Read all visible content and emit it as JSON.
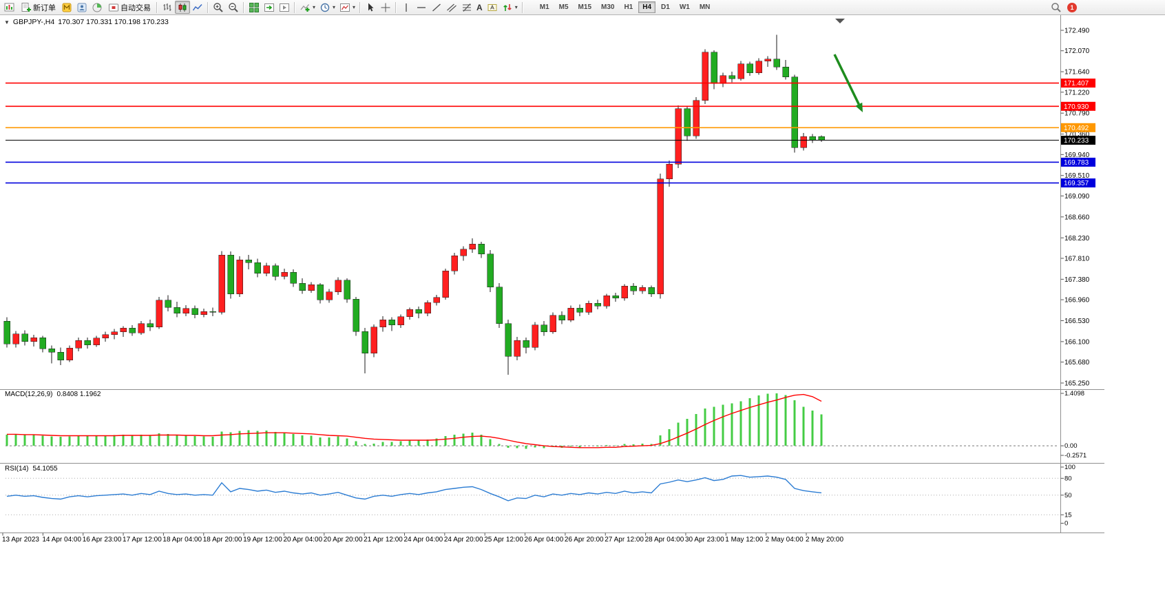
{
  "app": {
    "toolbar": {
      "new_order_label": "新订单",
      "autotrade_label": "自动交易",
      "timeframes": [
        "M1",
        "M5",
        "M15",
        "M30",
        "H1",
        "H4",
        "D1",
        "W1",
        "MN"
      ],
      "active_timeframe": "H4",
      "notification_count": "1",
      "glyphs": {
        "dropdown": "▾",
        "text_tool": "A"
      },
      "icon_names": [
        "new-chart-icon",
        "new-order-icon",
        "metaeditor-icon",
        "profiles-icon",
        "market-icon",
        "autotrading-icon",
        "bar-chart-icon",
        "candlestick-icon",
        "line-chart-icon",
        "zoom-in-icon",
        "zoom-out-icon",
        "tile-windows-icon",
        "auto-scroll-icon",
        "chart-shift-icon",
        "indicators-icon",
        "periods-icon",
        "templates-icon",
        "cursor-icon",
        "crosshair-icon",
        "vertical-line-icon",
        "horizontal-line-icon",
        "trendline-icon",
        "channel-icon",
        "fibonacci-icon",
        "text-icon",
        "text-label-icon",
        "arrows-icon",
        "search-icon",
        "notification-badge"
      ]
    }
  },
  "chart": {
    "title": {
      "collapse_glyph": "▼",
      "symbol_period": "GBPJPY-,H4",
      "ohlc": "170.307 170.331 170.198 170.233"
    }
  },
  "colors": {
    "bull": "#ff2020",
    "bear": "#22ab22",
    "macd_hist": "#44cc44",
    "macd_signal": "#ff0000",
    "rsi": "#2b7cd3",
    "level_red": "#ff0000",
    "level_orange": "#ff9800",
    "level_blue": "#0000dd",
    "current_price": "#000000"
  },
  "chart_data": {
    "type": "candlestick",
    "symbol": "GBPJPY-",
    "period": "H4",
    "price_range": {
      "max": 172.49,
      "min": 165.25
    },
    "price_axis_ticks": [
      "172.490",
      "172.070",
      "171.640",
      "171.220",
      "170.790",
      "170.360",
      "169.940",
      "169.510",
      "169.090",
      "168.660",
      "168.230",
      "167.810",
      "167.380",
      "166.960",
      "166.530",
      "166.100",
      "165.680",
      "165.250"
    ],
    "levels": [
      {
        "price": 171.407,
        "label": "171.407",
        "color": "#ff0000"
      },
      {
        "price": 170.93,
        "label": "170.930",
        "color": "#ff0000"
      },
      {
        "price": 170.492,
        "label": "170.492",
        "color": "#ff9800"
      },
      {
        "price": 169.783,
        "label": "169.783",
        "color": "#0000dd"
      },
      {
        "price": 169.357,
        "label": "169.357",
        "color": "#0000dd"
      }
    ],
    "current_price": 170.233,
    "current_price_label": "170.233",
    "annotations": [
      {
        "type": "arrow",
        "from": [
          1212,
          79
        ],
        "to": [
          1253,
          163
        ],
        "color": "#1e8c1e"
      }
    ],
    "candles": [
      [
        166.52,
        166.6,
        165.98,
        166.05
      ],
      [
        166.05,
        166.32,
        165.98,
        166.26
      ],
      [
        166.26,
        166.33,
        166.02,
        166.1
      ],
      [
        166.1,
        166.24,
        166.0,
        166.18
      ],
      [
        166.18,
        166.22,
        165.88,
        165.95
      ],
      [
        165.95,
        166.02,
        165.65,
        165.88
      ],
      [
        165.88,
        165.98,
        165.62,
        165.72
      ],
      [
        165.72,
        166.02,
        165.68,
        165.97
      ],
      [
        165.97,
        166.18,
        165.9,
        166.12
      ],
      [
        166.12,
        166.18,
        165.96,
        166.03
      ],
      [
        166.03,
        166.22,
        165.99,
        166.17
      ],
      [
        166.17,
        166.3,
        166.1,
        166.24
      ],
      [
        166.24,
        166.36,
        166.15,
        166.3
      ],
      [
        166.3,
        166.42,
        166.2,
        166.38
      ],
      [
        166.38,
        166.44,
        166.22,
        166.28
      ],
      [
        166.28,
        166.52,
        166.24,
        166.47
      ],
      [
        166.47,
        166.55,
        166.32,
        166.4
      ],
      [
        166.4,
        167.02,
        166.36,
        166.95
      ],
      [
        166.95,
        167.05,
        166.72,
        166.8
      ],
      [
        166.8,
        166.92,
        166.6,
        166.68
      ],
      [
        166.68,
        166.85,
        166.62,
        166.78
      ],
      [
        166.78,
        166.84,
        166.58,
        166.65
      ],
      [
        166.65,
        166.78,
        166.6,
        166.72
      ],
      [
        166.72,
        166.8,
        166.62,
        166.7
      ],
      [
        166.7,
        167.96,
        166.66,
        167.88
      ],
      [
        167.88,
        167.95,
        166.98,
        167.08
      ],
      [
        167.08,
        167.85,
        167.02,
        167.78
      ],
      [
        167.78,
        167.88,
        167.58,
        167.72
      ],
      [
        167.72,
        167.8,
        167.42,
        167.5
      ],
      [
        167.5,
        167.72,
        167.44,
        167.66
      ],
      [
        167.66,
        167.7,
        167.36,
        167.44
      ],
      [
        167.44,
        167.6,
        167.38,
        167.52
      ],
      [
        167.52,
        167.58,
        167.22,
        167.3
      ],
      [
        167.3,
        167.4,
        167.08,
        167.15
      ],
      [
        167.15,
        167.32,
        167.1,
        167.27
      ],
      [
        167.27,
        167.3,
        166.88,
        166.96
      ],
      [
        166.96,
        167.18,
        166.9,
        167.12
      ],
      [
        167.12,
        167.42,
        167.06,
        167.36
      ],
      [
        167.36,
        167.4,
        166.9,
        166.97
      ],
      [
        166.97,
        167.02,
        166.22,
        166.31
      ],
      [
        166.31,
        166.38,
        165.45,
        165.86
      ],
      [
        165.86,
        166.45,
        165.78,
        166.4
      ],
      [
        166.4,
        166.62,
        166.3,
        166.55
      ],
      [
        166.55,
        166.6,
        166.32,
        166.44
      ],
      [
        166.44,
        166.66,
        166.38,
        166.61
      ],
      [
        166.61,
        166.8,
        166.55,
        166.76
      ],
      [
        166.76,
        166.82,
        166.58,
        166.68
      ],
      [
        166.68,
        166.95,
        166.62,
        166.9
      ],
      [
        166.9,
        167.06,
        166.84,
        167.01
      ],
      [
        167.01,
        167.6,
        166.96,
        167.55
      ],
      [
        167.55,
        167.92,
        167.48,
        167.86
      ],
      [
        167.86,
        168.06,
        167.76,
        168.0
      ],
      [
        168.0,
        168.22,
        167.92,
        168.1
      ],
      [
        168.1,
        168.15,
        167.82,
        167.9
      ],
      [
        167.9,
        167.98,
        167.12,
        167.22
      ],
      [
        167.22,
        167.3,
        166.38,
        166.47
      ],
      [
        166.47,
        166.55,
        165.42,
        165.8
      ],
      [
        165.8,
        166.2,
        165.72,
        166.12
      ],
      [
        166.12,
        166.18,
        165.86,
        165.98
      ],
      [
        165.98,
        166.5,
        165.92,
        166.44
      ],
      [
        166.44,
        166.52,
        166.22,
        166.3
      ],
      [
        166.3,
        166.7,
        166.26,
        166.64
      ],
      [
        166.64,
        166.72,
        166.46,
        166.54
      ],
      [
        166.54,
        166.84,
        166.5,
        166.79
      ],
      [
        166.79,
        166.86,
        166.62,
        166.7
      ],
      [
        166.7,
        166.94,
        166.65,
        166.89
      ],
      [
        166.89,
        166.96,
        166.76,
        166.83
      ],
      [
        166.83,
        167.08,
        166.78,
        167.04
      ],
      [
        167.04,
        167.1,
        166.92,
        166.99
      ],
      [
        166.99,
        167.28,
        166.94,
        167.24
      ],
      [
        167.24,
        167.3,
        167.06,
        167.14
      ],
      [
        167.14,
        167.26,
        167.08,
        167.21
      ],
      [
        167.21,
        167.25,
        167.02,
        167.08
      ],
      [
        167.08,
        169.55,
        166.98,
        169.44
      ],
      [
        169.44,
        169.82,
        169.28,
        169.74
      ],
      [
        169.74,
        170.95,
        169.66,
        170.88
      ],
      [
        170.88,
        170.94,
        170.22,
        170.32
      ],
      [
        170.32,
        171.12,
        170.26,
        171.05
      ],
      [
        171.05,
        172.1,
        170.98,
        172.04
      ],
      [
        172.04,
        172.08,
        171.28,
        171.4
      ],
      [
        171.4,
        171.62,
        171.32,
        171.56
      ],
      [
        171.56,
        171.64,
        171.42,
        171.5
      ],
      [
        171.5,
        171.86,
        171.46,
        171.8
      ],
      [
        171.8,
        171.85,
        171.56,
        171.62
      ],
      [
        171.62,
        171.92,
        171.58,
        171.86
      ],
      [
        171.86,
        171.96,
        171.74,
        171.9
      ],
      [
        171.9,
        172.4,
        171.68,
        171.74
      ],
      [
        171.74,
        171.88,
        171.48,
        171.53
      ],
      [
        171.53,
        171.58,
        169.98,
        170.08
      ],
      [
        170.08,
        170.38,
        170.02,
        170.31
      ],
      [
        170.31,
        170.36,
        170.18,
        170.24
      ],
      [
        170.307,
        170.331,
        170.198,
        170.233
      ]
    ],
    "macd": {
      "label": "MACD(12,26,9)",
      "values": "0.8408 1.1962",
      "max": 1.4098,
      "min": -0.2571,
      "axis_ticks": [
        "1.4098",
        "0.00",
        "-0.2571"
      ],
      "histogram": [
        0.3,
        0.31,
        0.3,
        0.29,
        0.27,
        0.25,
        0.24,
        0.25,
        0.27,
        0.26,
        0.27,
        0.28,
        0.29,
        0.3,
        0.28,
        0.3,
        0.28,
        0.34,
        0.32,
        0.29,
        0.28,
        0.26,
        0.25,
        0.24,
        0.38,
        0.36,
        0.4,
        0.42,
        0.4,
        0.41,
        0.37,
        0.36,
        0.32,
        0.28,
        0.27,
        0.22,
        0.22,
        0.25,
        0.2,
        0.12,
        0.05,
        0.06,
        0.1,
        0.1,
        0.12,
        0.15,
        0.14,
        0.17,
        0.2,
        0.26,
        0.3,
        0.33,
        0.35,
        0.3,
        0.18,
        0.05,
        -0.05,
        -0.06,
        -0.08,
        -0.04,
        -0.06,
        -0.03,
        -0.05,
        -0.02,
        -0.04,
        0.0,
        -0.02,
        0.02,
        0.01,
        0.05,
        0.04,
        0.06,
        0.05,
        0.28,
        0.45,
        0.62,
        0.72,
        0.85,
        1.0,
        1.05,
        1.1,
        1.14,
        1.2,
        1.28,
        1.35,
        1.4,
        1.41,
        1.36,
        1.22,
        1.05,
        0.95,
        0.8408
      ],
      "signal": [
        0.31,
        0.31,
        0.3,
        0.3,
        0.29,
        0.28,
        0.27,
        0.27,
        0.27,
        0.27,
        0.27,
        0.27,
        0.27,
        0.28,
        0.28,
        0.28,
        0.28,
        0.29,
        0.29,
        0.29,
        0.28,
        0.28,
        0.27,
        0.27,
        0.29,
        0.3,
        0.32,
        0.33,
        0.34,
        0.35,
        0.35,
        0.35,
        0.34,
        0.33,
        0.32,
        0.3,
        0.28,
        0.27,
        0.26,
        0.23,
        0.2,
        0.18,
        0.17,
        0.16,
        0.15,
        0.15,
        0.15,
        0.15,
        0.16,
        0.18,
        0.2,
        0.23,
        0.25,
        0.26,
        0.24,
        0.2,
        0.15,
        0.1,
        0.06,
        0.03,
        0.0,
        -0.02,
        -0.03,
        -0.04,
        -0.05,
        -0.05,
        -0.05,
        -0.04,
        -0.04,
        -0.02,
        -0.01,
        0.0,
        0.01,
        0.06,
        0.14,
        0.24,
        0.34,
        0.45,
        0.57,
        0.68,
        0.78,
        0.87,
        0.95,
        1.03,
        1.1,
        1.17,
        1.23,
        1.3,
        1.36,
        1.38,
        1.32,
        1.1962
      ]
    },
    "rsi": {
      "label": "RSI(14)",
      "value": "54.1055",
      "axis_ticks": [
        "100",
        "80",
        "50",
        "15",
        "0"
      ],
      "level_lines": [
        80,
        50,
        15
      ],
      "series": [
        48,
        50,
        48,
        49,
        46,
        44,
        43,
        47,
        49,
        47,
        49,
        50,
        51,
        52,
        50,
        53,
        51,
        57,
        53,
        51,
        52,
        50,
        51,
        50,
        72,
        56,
        62,
        60,
        57,
        59,
        55,
        57,
        54,
        52,
        54,
        50,
        52,
        55,
        50,
        45,
        43,
        48,
        50,
        48,
        51,
        53,
        51,
        54,
        56,
        60,
        62,
        64,
        65,
        60,
        53,
        47,
        40,
        45,
        44,
        50,
        47,
        52,
        50,
        53,
        51,
        54,
        52,
        55,
        53,
        57,
        54,
        56,
        54,
        70,
        73,
        77,
        74,
        77,
        81,
        76,
        78,
        84,
        85,
        82,
        83,
        84,
        82,
        78,
        62,
        58,
        56,
        54.1
      ]
    },
    "date_labels": [
      "13 Apr 2023",
      "14 Apr 04:00",
      "16 Apr 23:00",
      "17 Apr 12:00",
      "18 Apr 04:00",
      "18 Apr 20:00",
      "19 Apr 12:00",
      "20 Apr 04:00",
      "20 Apr 20:00",
      "21 Apr 12:00",
      "24 Apr 04:00",
      "24 Apr 20:00",
      "25 Apr 12:00",
      "26 Apr 04:00",
      "26 Apr 20:00",
      "27 Apr 12:00",
      "28 Apr 04:00",
      "30 Apr 23:00",
      "1 May 12:00",
      "2 May 04:00",
      "2 May 20:00"
    ]
  }
}
